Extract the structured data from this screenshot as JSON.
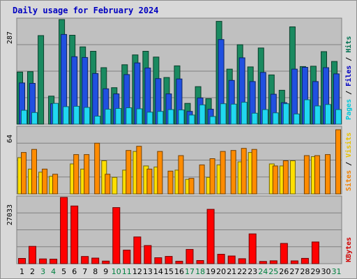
{
  "chart_data": {
    "type": "bar",
    "title": "Daily usage for February 2024",
    "days": [
      "1",
      "2",
      "3",
      "4",
      "5",
      "6",
      "7",
      "8",
      "9",
      "10",
      "11",
      "12",
      "13",
      "14",
      "15",
      "16",
      "17",
      "18",
      "19",
      "20",
      "21",
      "22",
      "23",
      "24",
      "25",
      "26",
      "27",
      "28",
      "29",
      "30",
      "31"
    ],
    "weekend_days": [
      "3",
      "4",
      "10",
      "11",
      "17",
      "18",
      "24",
      "25",
      "31"
    ],
    "panels": [
      {
        "name": "hits-files-pages",
        "ymax_label": "287",
        "ymax": 287,
        "legend": [
          "Pages",
          "Files",
          "Hits"
        ],
        "legend_colors": [
          "#00c8d8",
          "#0000c0",
          "#007050"
        ],
        "series": [
          {
            "name": "Hits",
            "color": "#1a8a60",
            "values": [
              143,
              144,
              243,
              77,
              287,
              244,
              212,
              200,
              155,
              100,
              163,
              190,
              200,
              184,
              128,
              160,
              57,
              103,
              70,
              282,
              151,
              218,
              157,
              209,
              135,
              93,
              267,
              158,
              159,
              199,
              172
            ]
          },
          {
            "name": "Files",
            "color": "#2050e0",
            "values": [
              113,
              112,
              null,
              56,
              246,
              185,
              183,
              139,
              97,
              83,
              136,
              168,
              154,
              125,
              83,
              124,
              35,
              72,
              41,
              232,
              120,
              182,
              117,
              142,
              82,
              59,
              151,
              156,
              117,
              155,
              138
            ]
          },
          {
            "name": "Pages",
            "color": "#20d8f0",
            "values": [
              38,
              32,
              null,
              57,
              48,
              49,
              46,
              22,
              41,
              43,
              45,
              42,
              33,
              35,
              40,
              39,
              25,
              53,
              21,
              56,
              55,
              60,
              30,
              40,
              31,
              56,
              28,
              67,
              50,
              54,
              40
            ]
          }
        ]
      },
      {
        "name": "visits-sites",
        "ymax_label": "64",
        "ymax": 64,
        "legend": [
          "Sites",
          "Visits"
        ],
        "legend_colors": [
          "#f08000",
          "#e8c000"
        ],
        "series": [
          {
            "name": "Visits",
            "color": "#ffe000",
            "values": [
              35,
              24,
              21,
              17,
              null,
              29,
              24,
              null,
              32,
              16,
              23,
              41,
              27,
              26,
              null,
              23,
              14,
              null,
              16,
              28,
              null,
              31,
              40,
              null,
              29,
              27,
              32,
              null,
              36,
              null,
              null
            ]
          },
          {
            "name": "Sites",
            "color": "#ff8c00",
            "values": [
              40,
              43,
              24,
              19,
              null,
              38,
              38,
              49,
              19,
              null,
              42,
              46,
              24,
              41,
              22,
              37,
              15,
              28,
              34,
              41,
              42,
              44,
              43,
              null,
              27,
              32,
              null,
              37,
              37,
              38,
              62
            ]
          }
        ]
      },
      {
        "name": "kbytes",
        "ymax_label": "27033",
        "ymax": 27033,
        "legend": [
          "KBytes"
        ],
        "legend_colors": [
          "#d00000"
        ],
        "series": [
          {
            "name": "KBytes",
            "color": "#ff0000",
            "values": [
              2140,
              7044,
              1922,
              1836,
              27033,
              23540,
              2940,
              2278,
              1064,
              22888,
              5530,
              10904,
              7412,
              2428,
              2970,
              1000,
              5807,
              1278,
              22176,
              3830,
              3120,
              2016,
              12152,
              900,
              1160,
              8252,
              1140,
              2158,
              8840,
              null,
              null
            ]
          }
        ]
      }
    ]
  }
}
